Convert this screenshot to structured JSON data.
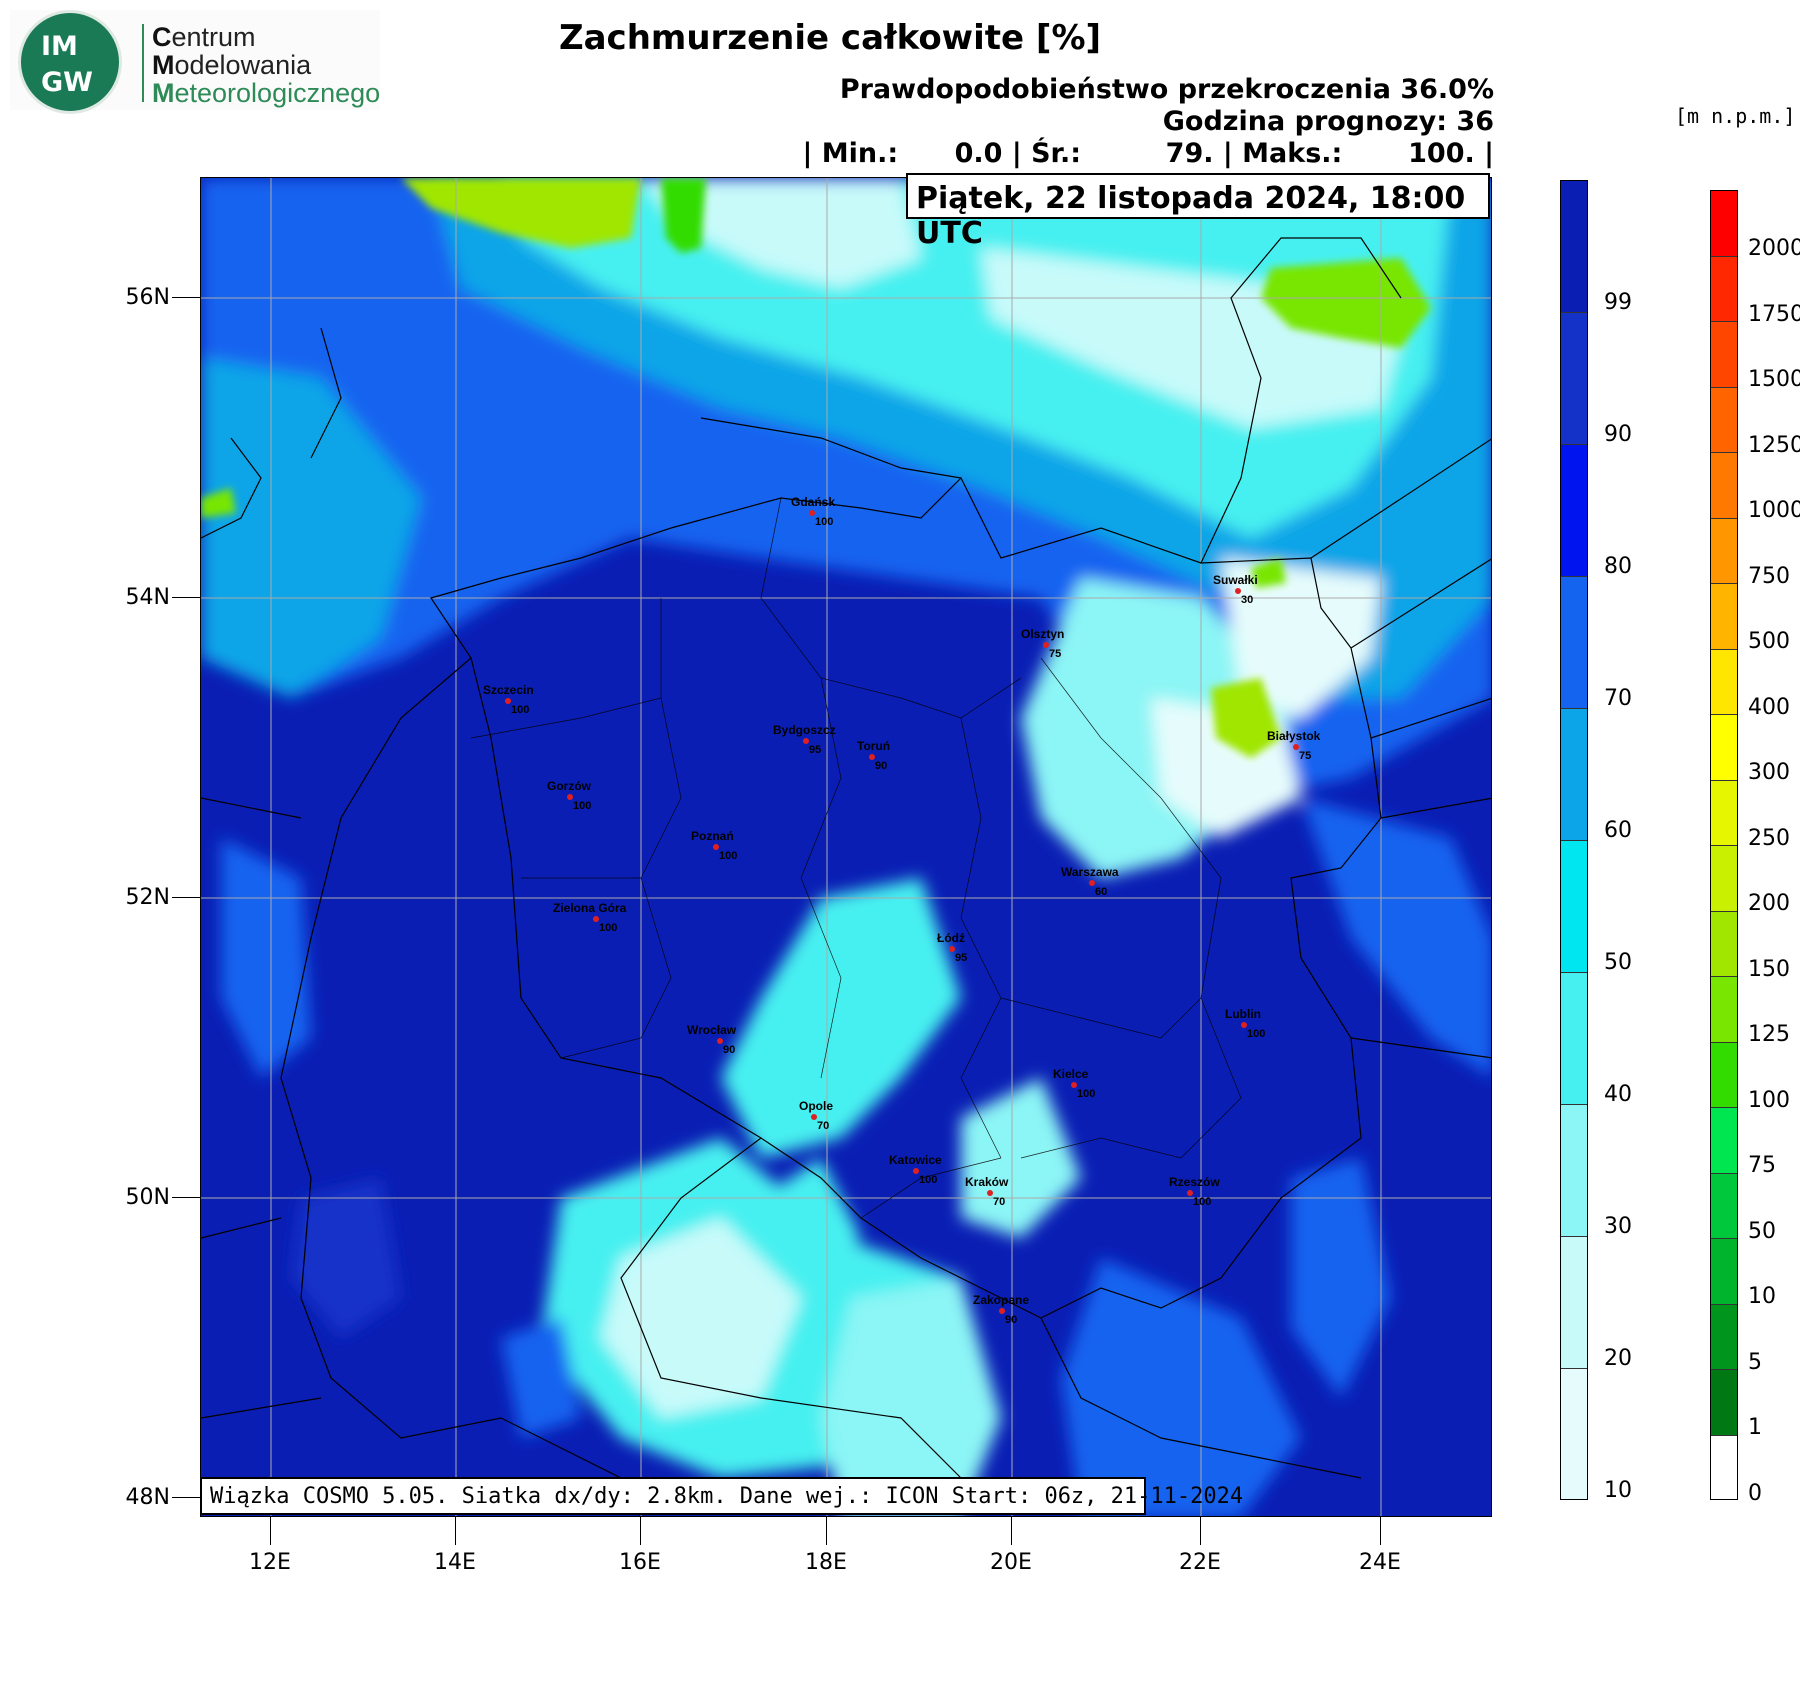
{
  "logo": {
    "badge_top": "IM",
    "badge_bottom": "GW",
    "line1_initial": "C",
    "line1_rest": "entrum",
    "line2_initial": "M",
    "line2_rest": "odelowania",
    "line3_initial": "M",
    "line3_rest": "eteorologicznego"
  },
  "header": {
    "title": "Zachmurzenie całkowite [%]",
    "probability": "Prawdopodobieństwo przekroczenia 36.0%",
    "forecast_hour": "Godzina prognozy: 36",
    "stats": "| Min.:      0.0 | Śr.:         79. | Maks.:       100. |",
    "datetime": "Piątek, 22 listopada 2024, 18:00 UTC",
    "units_right": "[m n.p.m.]"
  },
  "footer": {
    "note": "Wiązka COSMO 5.05. Siatka dx/dy: 2.8km. Dane wej.: ICON Start: 06z, 21-11-2024"
  },
  "map": {
    "lat_labels": [
      "56N",
      "54N",
      "52N",
      "50N",
      "48N"
    ],
    "lon_labels": [
      "12E",
      "14E",
      "16E",
      "18E",
      "20E",
      "22E",
      "24E"
    ],
    "cities": [
      {
        "name": "Gdańsk",
        "value": "100"
      },
      {
        "name": "Suwałki",
        "value": "30"
      },
      {
        "name": "Olsztyn",
        "value": "75"
      },
      {
        "name": "Szczecin",
        "value": "100"
      },
      {
        "name": "Bydgoszcz",
        "value": "95"
      },
      {
        "name": "Toruń",
        "value": "90"
      },
      {
        "name": "Białystok",
        "value": "75"
      },
      {
        "name": "Gorzów",
        "value": "100"
      },
      {
        "name": "Poznań",
        "value": "100"
      },
      {
        "name": "Warszawa",
        "value": "60"
      },
      {
        "name": "Zielona Góra",
        "value": "100"
      },
      {
        "name": "Łódź",
        "value": "95"
      },
      {
        "name": "Lublin",
        "value": "100"
      },
      {
        "name": "Wrocław",
        "value": "90"
      },
      {
        "name": "Kielce",
        "value": "100"
      },
      {
        "name": "Opole",
        "value": "70"
      },
      {
        "name": "Katowice",
        "value": "100"
      },
      {
        "name": "Kraków",
        "value": "70"
      },
      {
        "name": "Rzeszów",
        "value": "100"
      },
      {
        "name": "Zakopane",
        "value": "90"
      }
    ]
  },
  "cloud_scale": {
    "labels": [
      "99",
      "90",
      "80",
      "70",
      "60",
      "50",
      "40",
      "30",
      "20",
      "10"
    ],
    "colors": [
      "#0a1eb4",
      "#1432c8",
      "#0014f0",
      "#1464f0",
      "#0ba5e8",
      "#00e6f0",
      "#46f0f0",
      "#8cf5f5",
      "#c8fafa",
      "#e6fcfc"
    ]
  },
  "terrain_scale": {
    "labels": [
      "2000",
      "1750",
      "1500",
      "1250",
      "1000",
      "750",
      "500",
      "400",
      "300",
      "250",
      "200",
      "150",
      "125",
      "100",
      "75",
      "50",
      "10",
      "5",
      "1",
      "0"
    ],
    "colors": [
      "#ff0000",
      "#ff2800",
      "#ff4600",
      "#ff6400",
      "#ff7800",
      "#ff9600",
      "#ffb400",
      "#ffe600",
      "#ffff00",
      "#e6f500",
      "#c8f000",
      "#a0e600",
      "#78e600",
      "#32dc00",
      "#00e650",
      "#00c83c",
      "#00b42d",
      "#00961e",
      "#007814",
      "#ffffff"
    ]
  }
}
